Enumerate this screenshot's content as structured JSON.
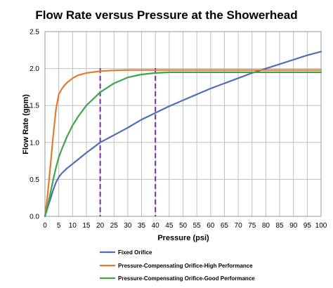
{
  "chart_data": {
    "type": "line",
    "title": "Flow Rate versus Pressure at the Showerhead",
    "xlabel": "Pressure (psi)",
    "ylabel": "Flow Rate (gpm)",
    "xlim": [
      0,
      100
    ],
    "ylim": [
      0,
      2.5
    ],
    "x_ticks": [
      0,
      5,
      10,
      15,
      20,
      25,
      30,
      35,
      40,
      45,
      50,
      55,
      60,
      65,
      70,
      75,
      80,
      85,
      90,
      95,
      100
    ],
    "y_ticks": [
      0,
      0.5,
      1.0,
      1.5,
      2.0,
      2.5
    ],
    "y_tick_labels": [
      "0.0",
      "0.5",
      "1.0",
      "1.5",
      "2.0",
      "2.5"
    ],
    "grid": true,
    "legend_position": "bottom",
    "vertical_markers": [
      {
        "x": 20,
        "color": "#7030A0",
        "style": "dashed"
      },
      {
        "x": 40,
        "color": "#7030A0",
        "style": "dashed"
      }
    ],
    "series": [
      {
        "name": "Fixed Orifice",
        "color": "#4F6EB8",
        "x": [
          0,
          1,
          2,
          3,
          4,
          5,
          6,
          8,
          10,
          12,
          15,
          20,
          25,
          30,
          35,
          40,
          45,
          50,
          55,
          60,
          65,
          70,
          75,
          80,
          85,
          90,
          95,
          100
        ],
        "y": [
          0,
          0.12,
          0.24,
          0.36,
          0.46,
          0.53,
          0.58,
          0.65,
          0.71,
          0.77,
          0.86,
          1.0,
          1.1,
          1.2,
          1.31,
          1.4,
          1.49,
          1.57,
          1.65,
          1.73,
          1.8,
          1.87,
          1.94,
          2.0,
          2.06,
          2.12,
          2.18,
          2.23
        ]
      },
      {
        "name": "Pressure-Compensating Orifice-High Performance",
        "color": "#E07B30",
        "x": [
          0,
          1,
          2,
          3,
          4,
          5,
          6,
          7,
          8,
          10,
          12,
          15,
          20,
          25,
          30,
          35,
          40,
          50,
          60,
          70,
          80,
          90,
          100
        ],
        "y": [
          0,
          0.3,
          0.7,
          1.1,
          1.45,
          1.65,
          1.72,
          1.77,
          1.81,
          1.87,
          1.91,
          1.94,
          1.965,
          1.975,
          1.98,
          1.98,
          1.98,
          1.98,
          1.98,
          1.98,
          1.98,
          1.98,
          1.98
        ]
      },
      {
        "name": "Pressure-Compensating Orifice-Good Performance",
        "color": "#3FA54A",
        "x": [
          0,
          1,
          2,
          3,
          4,
          5,
          6,
          8,
          10,
          12,
          15,
          20,
          25,
          30,
          35,
          40,
          45,
          50,
          60,
          70,
          80,
          90,
          100
        ],
        "y": [
          0,
          0.15,
          0.32,
          0.5,
          0.66,
          0.8,
          0.9,
          1.08,
          1.23,
          1.35,
          1.5,
          1.68,
          1.8,
          1.88,
          1.92,
          1.94,
          1.95,
          1.95,
          1.95,
          1.95,
          1.95,
          1.95,
          1.95
        ]
      }
    ]
  }
}
